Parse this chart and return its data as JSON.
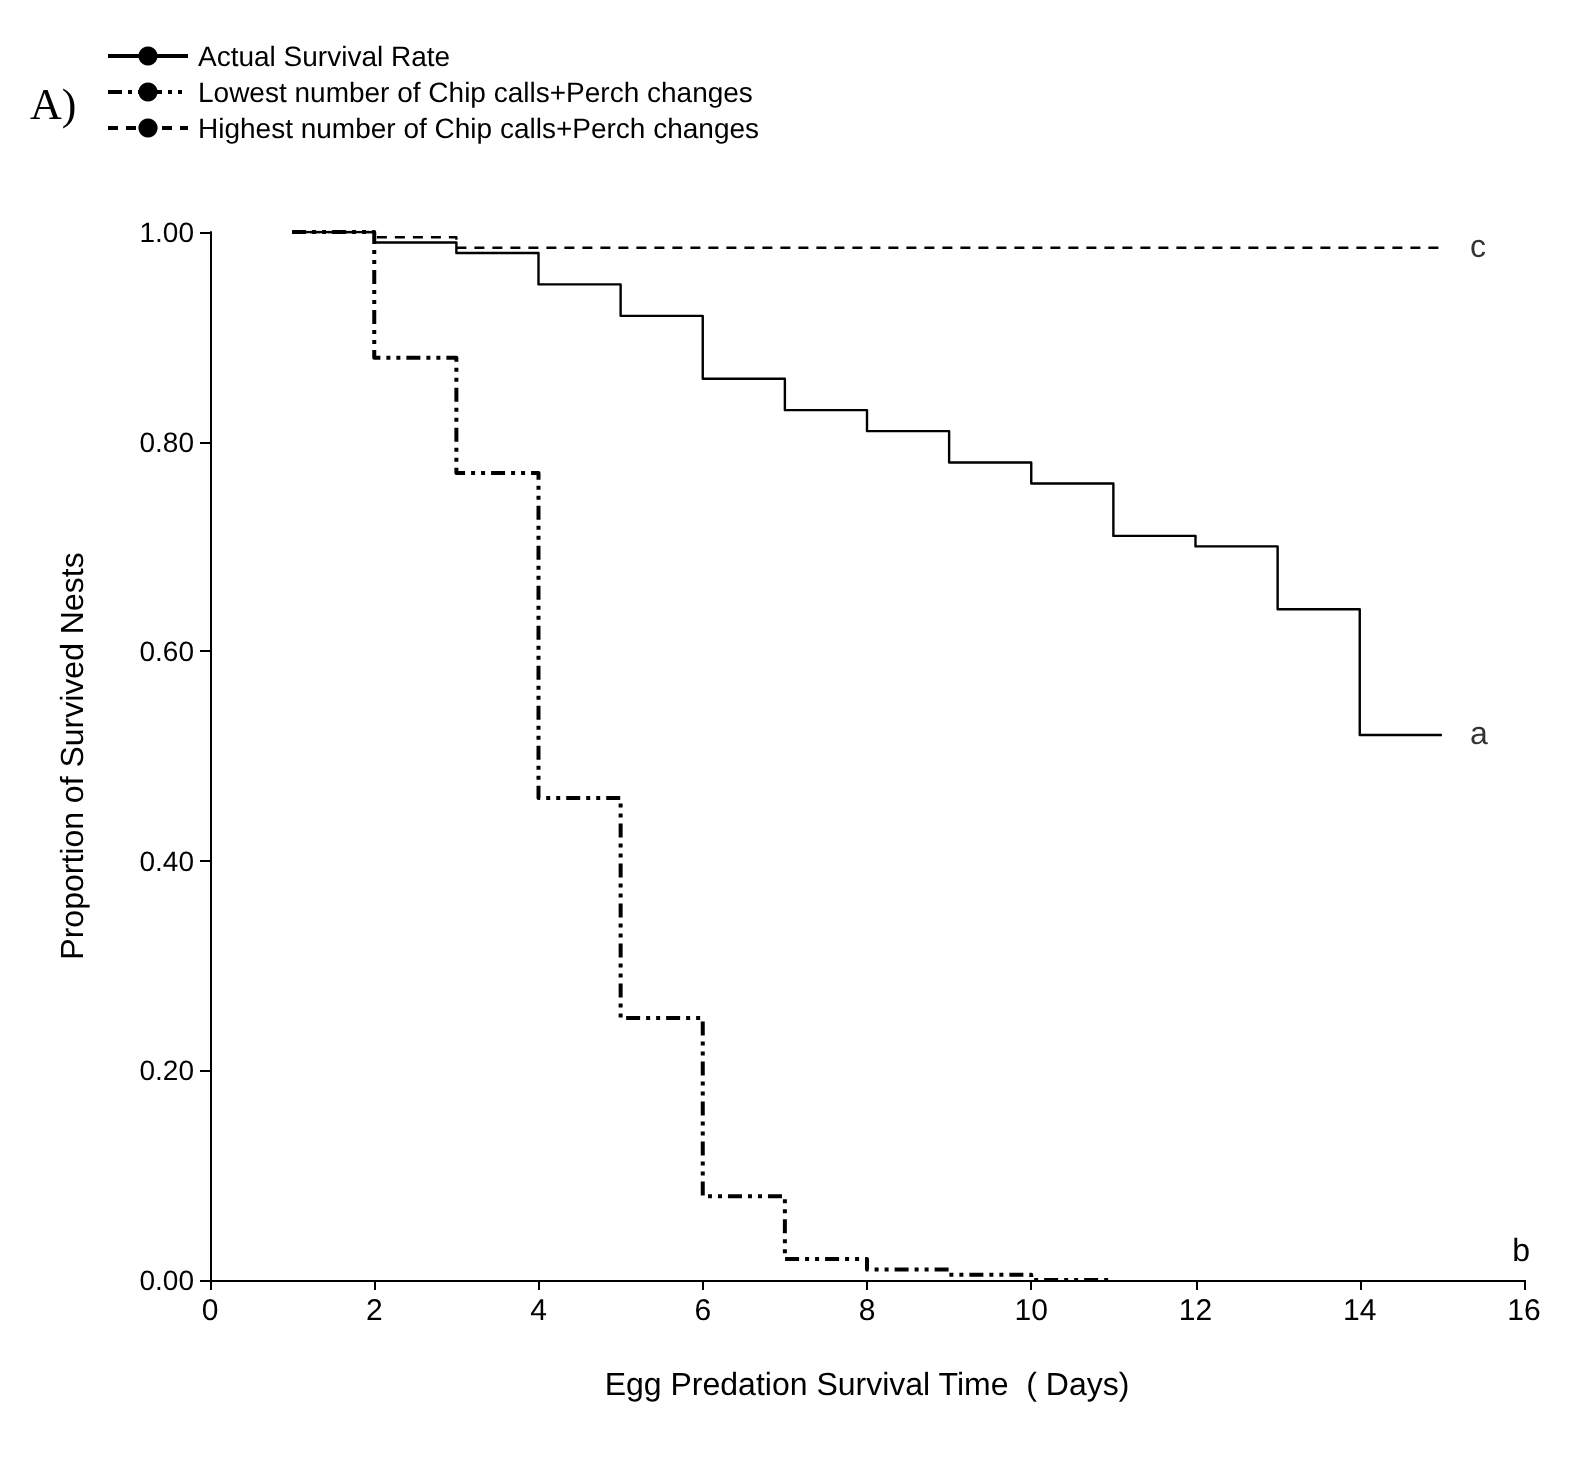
{
  "chart_data": {
    "type": "step",
    "title": "A)",
    "xlabel": "Egg Predation Survival Time  ( Days)",
    "ylabel": "Proportion of Survived Nests",
    "x": [
      1,
      2,
      3,
      4,
      5,
      6,
      7,
      8,
      9,
      10,
      11,
      12,
      13,
      14,
      15
    ],
    "series": [
      {
        "name": "Actual Survival Rate",
        "color": "#000000",
        "line_style": "solid",
        "values": [
          1.0,
          0.99,
          0.98,
          0.95,
          0.92,
          0.86,
          0.83,
          0.81,
          0.78,
          0.76,
          0.71,
          0.7,
          0.64,
          0.52,
          0.52
        ]
      },
      {
        "name": "Lowest number of Chip calls+Perch changes",
        "color": "#000000",
        "line_style": "dotted",
        "x": [
          1,
          2,
          3,
          4,
          5,
          6,
          7,
          8,
          9,
          10,
          11
        ],
        "values": [
          1.0,
          0.88,
          0.77,
          0.46,
          0.25,
          0.08,
          0.02,
          0.01,
          0.005,
          0.0,
          0.0
        ]
      },
      {
        "name": "Highest number of Chip calls+Perch changes",
        "color": "#000000",
        "line_style": "dashed",
        "x": [
          1,
          2,
          3,
          15
        ],
        "values": [
          1.0,
          0.995,
          0.985,
          0.985
        ]
      }
    ],
    "xlim": [
      0,
      16
    ],
    "xticks": [
      0,
      2,
      4,
      6,
      8,
      10,
      12,
      14,
      16
    ],
    "ylim": [
      0,
      1.0
    ],
    "yticks": [
      {
        "value": 0,
        "label": "0.00"
      },
      {
        "value": 0.2,
        "label": "0.20"
      },
      {
        "value": 0.4,
        "label": "0.40"
      },
      {
        "value": 0.6,
        "label": "0.60"
      },
      {
        "value": 0.8,
        "label": "0.80"
      },
      {
        "value": 1.0,
        "label": "1.00"
      }
    ],
    "annotations": [
      {
        "text": "a",
        "x": 15,
        "y": 0.52
      },
      "b",
      {
        "text": "c",
        "x": 15,
        "y": 0.985
      }
    ],
    "grid": false,
    "legend": "top left",
    "marker": "none"
  }
}
